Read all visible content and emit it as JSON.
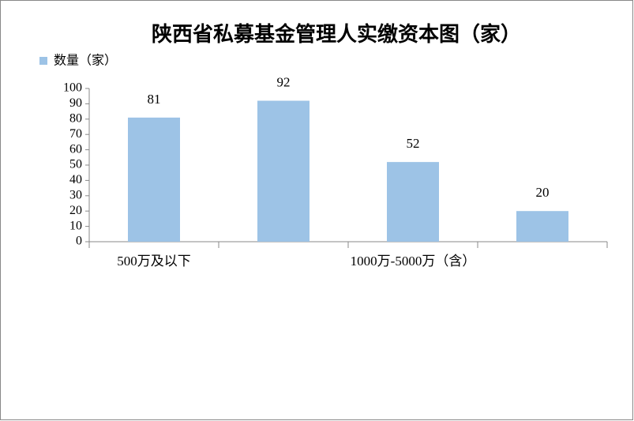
{
  "chart_data": {
    "type": "bar",
    "title": "陕西省私募基金管理人实缴资本图（家）",
    "categories": [
      "500万及以下",
      null,
      "1000万-5000万（含）",
      null
    ],
    "series": [
      {
        "name": "数量（家）",
        "color": "#9dc3e6",
        "values": [
          81,
          92,
          52,
          20
        ]
      }
    ],
    "ylim": [
      0,
      100
    ],
    "yticks": [
      0,
      10,
      20,
      30,
      40,
      50,
      60,
      70,
      80,
      90,
      100
    ],
    "legend": "top-left"
  }
}
